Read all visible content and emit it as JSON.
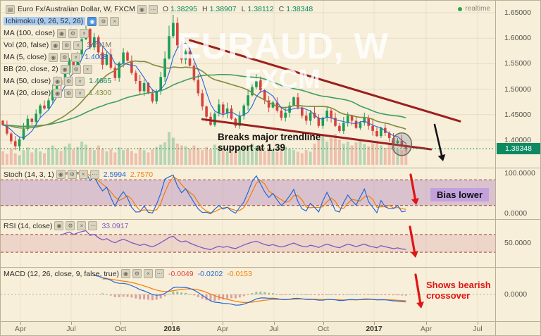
{
  "header": {
    "symbol_title": "Euro Fx/Australian Dollar, W, FXCM",
    "ohlc_items": [
      {
        "label": "O",
        "value": "1.38295"
      },
      {
        "label": "H",
        "value": "1.38907"
      },
      {
        "label": "L",
        "value": "1.38112"
      },
      {
        "label": "C",
        "value": "1.38348"
      }
    ],
    "realtime_label": "realtime"
  },
  "watermark": {
    "line1": "EURAUD, W",
    "line2": "FXCM"
  },
  "legend": {
    "rows": [
      {
        "label": "Ichimoku (9, 26, 52, 26)",
        "highlighted": true
      },
      {
        "label": "MA (100, close)"
      },
      {
        "label": "Vol (20, false)",
        "value": "3.261M",
        "value_color": "#777769"
      },
      {
        "label": "MA (5, close)",
        "value": "1.4008",
        "value_color": "#2766d8"
      },
      {
        "label": "BB (20, close, 2)"
      },
      {
        "label": "MA (50, close)",
        "value": "1.4665",
        "value_color": "#0d8a62"
      },
      {
        "label": "MA (20, close)",
        "value": "1.4300",
        "value_color": "#7d8c3f"
      }
    ]
  },
  "panels": {
    "stoch": {
      "label": "Stoch (14, 3, 1)",
      "values": [
        {
          "text": "2.5994",
          "color": "#2766d8"
        },
        {
          "text": "2.7570",
          "color": "#f57c00"
        }
      ]
    },
    "rsi": {
      "label": "RSI (14, close)",
      "values": [
        {
          "text": "33.0917",
          "color": "#7e57c2"
        }
      ]
    },
    "macd": {
      "label": "MACD (12, 26, close, 9, false, true)",
      "values": [
        {
          "text": "-0.0049",
          "color": "#e04040"
        },
        {
          "text": "-0.0202",
          "color": "#2766d8"
        },
        {
          "text": "-0.0153",
          "color": "#f57c00"
        }
      ]
    }
  },
  "annotations": {
    "main_text": "Breaks major trendline support at 1.39",
    "stoch_text": "Bias lower",
    "macd_text": "Shows bearish crossover"
  },
  "price_axis": {
    "labels": [
      "1.65000",
      "1.60000",
      "1.55000",
      "1.50000",
      "1.45000",
      "1.40000"
    ],
    "current": "1.38348",
    "sub_labels": [
      "100.0000",
      "0.0000",
      "50.0000",
      "0.0000"
    ]
  },
  "time_axis": {
    "labels": [
      {
        "text": "Apr",
        "year": false
      },
      {
        "text": "Jul",
        "year": false
      },
      {
        "text": "Oct",
        "year": false
      },
      {
        "text": "2016",
        "year": true
      },
      {
        "text": "Apr",
        "year": false
      },
      {
        "text": "Jul",
        "year": false
      },
      {
        "text": "Oct",
        "year": false
      },
      {
        "text": "2017",
        "year": true
      },
      {
        "text": "Apr",
        "year": false
      },
      {
        "text": "Jul",
        "year": false
      }
    ]
  },
  "icons": {
    "chart-icon": "▤",
    "eye-icon": "◉",
    "settings-icon": "⚙",
    "close-icon": "×",
    "more-icon": "⋯"
  },
  "colors": {
    "up": "#1a9e57",
    "down": "#d7413e",
    "ma_fast": "#2766d8",
    "ma_mid": "#7d8c3f",
    "ma_slow": "#3f9e63",
    "trendline": "#9b1f1f",
    "stoch_k": "#2766d8",
    "stoch_d": "#f57c00",
    "rsi": "#7e57c2",
    "macd": "#2766d8",
    "macd_signal": "#f57c00",
    "hist_pos": "#9bbf9b",
    "hist_neg": "#d9a0a0",
    "accent_badge": "#0d8a62",
    "annotation_red": "#e01515",
    "band_purple": "rgba(150,90,180,0.30)",
    "band_pink": "rgba(200,110,140,0.20)",
    "dashed_band_line": "#a1452f",
    "dotted_price": "#1b9a59",
    "volume_up": "rgba(38,150,90,0.30)",
    "volume_down": "rgba(215,80,70,0.30)"
  },
  "chart_data": {
    "type": "candlestick",
    "symbol": "EURAUD",
    "timeframe": "W",
    "exchange": "FXCM",
    "title": "Euro Fx/Australian Dollar, W, FXCM",
    "current_price": 1.38348,
    "current_ohlc": {
      "open": 1.38295,
      "high": 1.38907,
      "low": 1.38112,
      "close": 1.38348
    },
    "ylim": [
      1.37,
      1.66
    ],
    "price_gridlines": [
      1.65,
      1.6,
      1.55,
      1.5,
      1.45,
      1.4
    ],
    "x_labels": [
      "Apr",
      "Jul",
      "Oct",
      "2016",
      "Apr",
      "Jul",
      "Oct",
      "2017",
      "Apr",
      "Jul"
    ],
    "closes": [
      1.43,
      1.413,
      1.398,
      1.388,
      1.402,
      1.422,
      1.442,
      1.436,
      1.452,
      1.468,
      1.462,
      1.478,
      1.498,
      1.518,
      1.508,
      1.532,
      1.558,
      1.542,
      1.568,
      1.598,
      1.618,
      1.582,
      1.602,
      1.572,
      1.548,
      1.568,
      1.542,
      1.522,
      1.552,
      1.572,
      1.556,
      1.532,
      1.516,
      1.496,
      1.512,
      1.492,
      1.476,
      1.496,
      1.524,
      1.56,
      1.604,
      1.63,
      1.586,
      1.558,
      1.574,
      1.546,
      1.518,
      1.492,
      1.466,
      1.446,
      1.43,
      1.452,
      1.47,
      1.452,
      1.462,
      1.442,
      1.428,
      1.448,
      1.468,
      1.488,
      1.504,
      1.518,
      1.498,
      1.478,
      1.464,
      1.474,
      1.458,
      1.444,
      1.454,
      1.468,
      1.484,
      1.464,
      1.448,
      1.438,
      1.454,
      1.444,
      1.428,
      1.444,
      1.458,
      1.444,
      1.428,
      1.418,
      1.434,
      1.448,
      1.438,
      1.424,
      1.434,
      1.444,
      1.428,
      1.418,
      1.408,
      1.424,
      1.414,
      1.404,
      1.394,
      1.399,
      1.388,
      1.3835
    ],
    "volumes_rel": [
      0.35,
      0.28,
      0.42,
      0.3,
      0.25,
      0.38,
      0.45,
      0.32,
      0.4,
      0.35,
      0.3,
      0.44,
      0.5,
      0.42,
      0.36,
      0.48,
      0.55,
      0.4,
      0.46,
      0.6,
      0.52,
      0.44,
      0.38,
      0.5,
      0.42,
      0.35,
      0.4,
      0.32,
      0.45,
      0.38,
      0.42,
      0.36,
      0.3,
      0.44,
      0.38,
      0.32,
      0.4,
      0.46,
      0.52,
      0.58,
      0.85,
      0.7,
      0.55,
      0.5,
      0.48,
      0.42,
      0.5,
      0.44,
      0.38,
      0.46,
      0.4,
      0.52,
      0.44,
      0.38,
      0.35,
      0.42,
      0.36,
      0.44,
      0.5,
      0.46,
      0.55,
      0.48,
      0.4,
      0.36,
      0.44,
      0.38,
      0.34,
      0.4,
      0.46,
      0.42,
      0.38,
      0.34,
      0.3,
      0.38,
      0.34,
      0.55,
      0.65,
      0.75,
      0.6,
      0.7,
      0.8,
      0.65,
      0.55,
      0.6,
      0.5,
      0.58,
      0.66,
      0.54,
      0.48,
      0.56,
      0.62,
      0.5,
      0.44,
      0.52,
      0.46,
      0.4,
      0.38,
      0.42
    ],
    "trendlines": [
      {
        "name": "upper-wedge-line",
        "x1_index": 45,
        "price1": 1.596,
        "x2_index": 110,
        "price2": 1.437
      },
      {
        "name": "lower-wedge-line",
        "x1_index": 48,
        "price1": 1.441,
        "x2_index": 103,
        "price2": 1.382
      }
    ],
    "breakdown_circle": {
      "index": 96,
      "price": 1.392
    },
    "indicators": {
      "stoch": {
        "k": "2.5994",
        "d": "2.7570",
        "band": [
          20,
          80
        ],
        "range": [
          0,
          100
        ]
      },
      "rsi": {
        "value": "33.0917",
        "band": [
          30,
          70
        ],
        "range": [
          0,
          100
        ],
        "mid_label": "50.0000"
      },
      "macd": {
        "hist": "-0.0049",
        "macd": "-0.0202",
        "signal": "-0.0153",
        "zero_label": "0.0000"
      }
    }
  }
}
